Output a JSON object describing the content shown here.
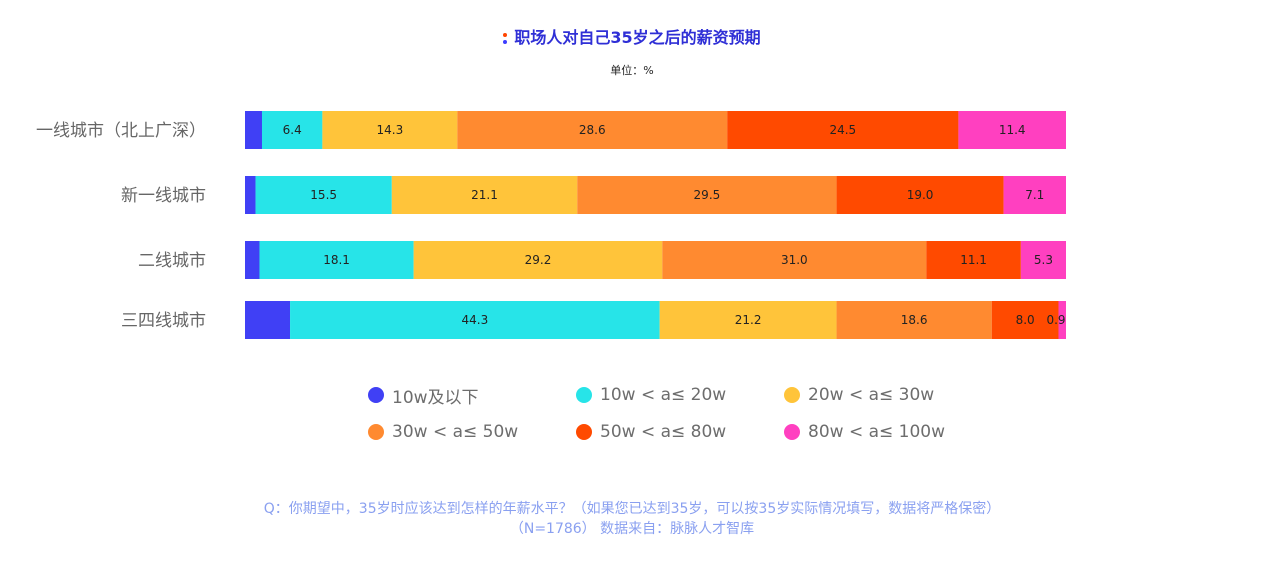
{
  "chart_data": {
    "type": "bar",
    "orientation": "horizontal",
    "stacked": true,
    "title": "职场人对自己35岁之后的薪资预期",
    "unit_label": "单位：%",
    "categories": [
      "一线城市（北上广深）",
      "新一线城市",
      "二线城市",
      "三四线城市"
    ],
    "series": [
      {
        "name": "10w及以下",
        "color": "#4040f5",
        "values": [
          1.8,
          1.2,
          1.7,
          5.4
        ],
        "labels": [
          "",
          "",
          "",
          ""
        ]
      },
      {
        "name": "10w < a≤ 20w",
        "color": "#27e4e8",
        "values": [
          6.4,
          15.5,
          18.1,
          44.3
        ],
        "labels": [
          "6.4",
          "15.5",
          "18.1",
          "44.3"
        ]
      },
      {
        "name": "20w < a≤ 30w",
        "color": "#ffc43a",
        "values": [
          14.3,
          21.1,
          29.2,
          21.2
        ],
        "labels": [
          "14.3",
          "21.1",
          "29.2",
          "21.2"
        ]
      },
      {
        "name": "30w < a≤ 50w",
        "color": "#ff8a30",
        "values": [
          28.6,
          29.5,
          31.0,
          18.6
        ],
        "labels": [
          "28.6",
          "29.5",
          "31.0",
          "18.6"
        ]
      },
      {
        "name": "50w < a≤ 80w",
        "color": "#ff4a00",
        "values": [
          24.5,
          19.0,
          11.1,
          8.0
        ],
        "labels": [
          "24.5",
          "19.0",
          "11.1",
          "8.0"
        ]
      },
      {
        "name": "80w < a≤ 100w",
        "color": "#ff40c0",
        "values": [
          11.4,
          7.1,
          5.3,
          0.9
        ],
        "labels": [
          "11.4",
          "7.1",
          "5.3",
          "0.9"
        ]
      }
    ],
    "xlim": [
      0,
      100
    ],
    "legend_position": "bottom",
    "grid": false
  },
  "footer": {
    "line1": "Q：你期望中，35岁时应该达到怎样的年薪水平？（如果您已达到35岁，可以按35岁实际情况填写，数据将严格保密）",
    "line2": "（N=1786） 数据来自：脉脉人才智库"
  }
}
